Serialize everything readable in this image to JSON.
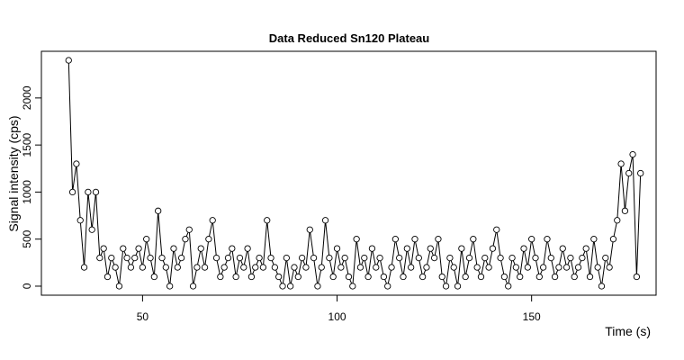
{
  "chart_data": {
    "type": "line",
    "title": "Data Reduced Sn120 Plateau",
    "x_label": "Time (s)",
    "y_label": "Signal intensity (cps)",
    "x": [
      31,
      32,
      33,
      34,
      35,
      36,
      37,
      38,
      39,
      40,
      41,
      42,
      43,
      44,
      45,
      46,
      47,
      48,
      49,
      50,
      51,
      52,
      53,
      54,
      55,
      56,
      57,
      58,
      59,
      60,
      61,
      62,
      63,
      64,
      65,
      66,
      67,
      68,
      69,
      70,
      71,
      72,
      73,
      74,
      75,
      76,
      77,
      78,
      79,
      80,
      81,
      82,
      83,
      84,
      85,
      86,
      87,
      88,
      89,
      90,
      91,
      92,
      93,
      94,
      95,
      96,
      97,
      98,
      99,
      100,
      101,
      102,
      103,
      104,
      105,
      106,
      107,
      108,
      109,
      110,
      111,
      112,
      113,
      114,
      115,
      116,
      117,
      118,
      119,
      120,
      121,
      122,
      123,
      124,
      125,
      126,
      127,
      128,
      129,
      130,
      131,
      132,
      133,
      134,
      135,
      136,
      137,
      138,
      139,
      140,
      141,
      142,
      143,
      144,
      145,
      146,
      147,
      148,
      149,
      150,
      151,
      152,
      153,
      154,
      155,
      156,
      157,
      158,
      159,
      160,
      161,
      162,
      163,
      164,
      165,
      166,
      167,
      168,
      169,
      170,
      171,
      172,
      173,
      174,
      175,
      176,
      177,
      178
    ],
    "values": [
      2400,
      1000,
      1300,
      700,
      200,
      1000,
      600,
      1000,
      300,
      400,
      100,
      300,
      200,
      0,
      400,
      300,
      200,
      300,
      400,
      200,
      500,
      300,
      100,
      800,
      300,
      200,
      0,
      400,
      200,
      300,
      500,
      600,
      0,
      200,
      400,
      200,
      500,
      700,
      300,
      100,
      200,
      300,
      400,
      100,
      300,
      200,
      400,
      100,
      200,
      300,
      200,
      700,
      300,
      200,
      100,
      0,
      300,
      0,
      200,
      100,
      300,
      200,
      600,
      300,
      0,
      200,
      700,
      300,
      100,
      400,
      200,
      300,
      100,
      0,
      500,
      200,
      300,
      100,
      400,
      200,
      300,
      100,
      0,
      200,
      500,
      300,
      100,
      400,
      200,
      500,
      300,
      100,
      200,
      400,
      300,
      500,
      100,
      0,
      300,
      200,
      0,
      400,
      100,
      300,
      500,
      200,
      100,
      300,
      200,
      400,
      600,
      300,
      100,
      0,
      300,
      200,
      100,
      400,
      200,
      500,
      300,
      100,
      200,
      500,
      300,
      100,
      200,
      400,
      200,
      300,
      100,
      200,
      300,
      400,
      100,
      500,
      200,
      0,
      300,
      200,
      500,
      700,
      1300,
      800,
      1200,
      1400,
      100,
      1200
    ],
    "color": "#000000",
    "xlim": [
      24,
      182
    ],
    "ylim": [
      -96,
      2496
    ],
    "xticks": [
      50,
      100,
      150
    ],
    "yticks": [
      0,
      500,
      1000,
      1500,
      2000
    ]
  }
}
